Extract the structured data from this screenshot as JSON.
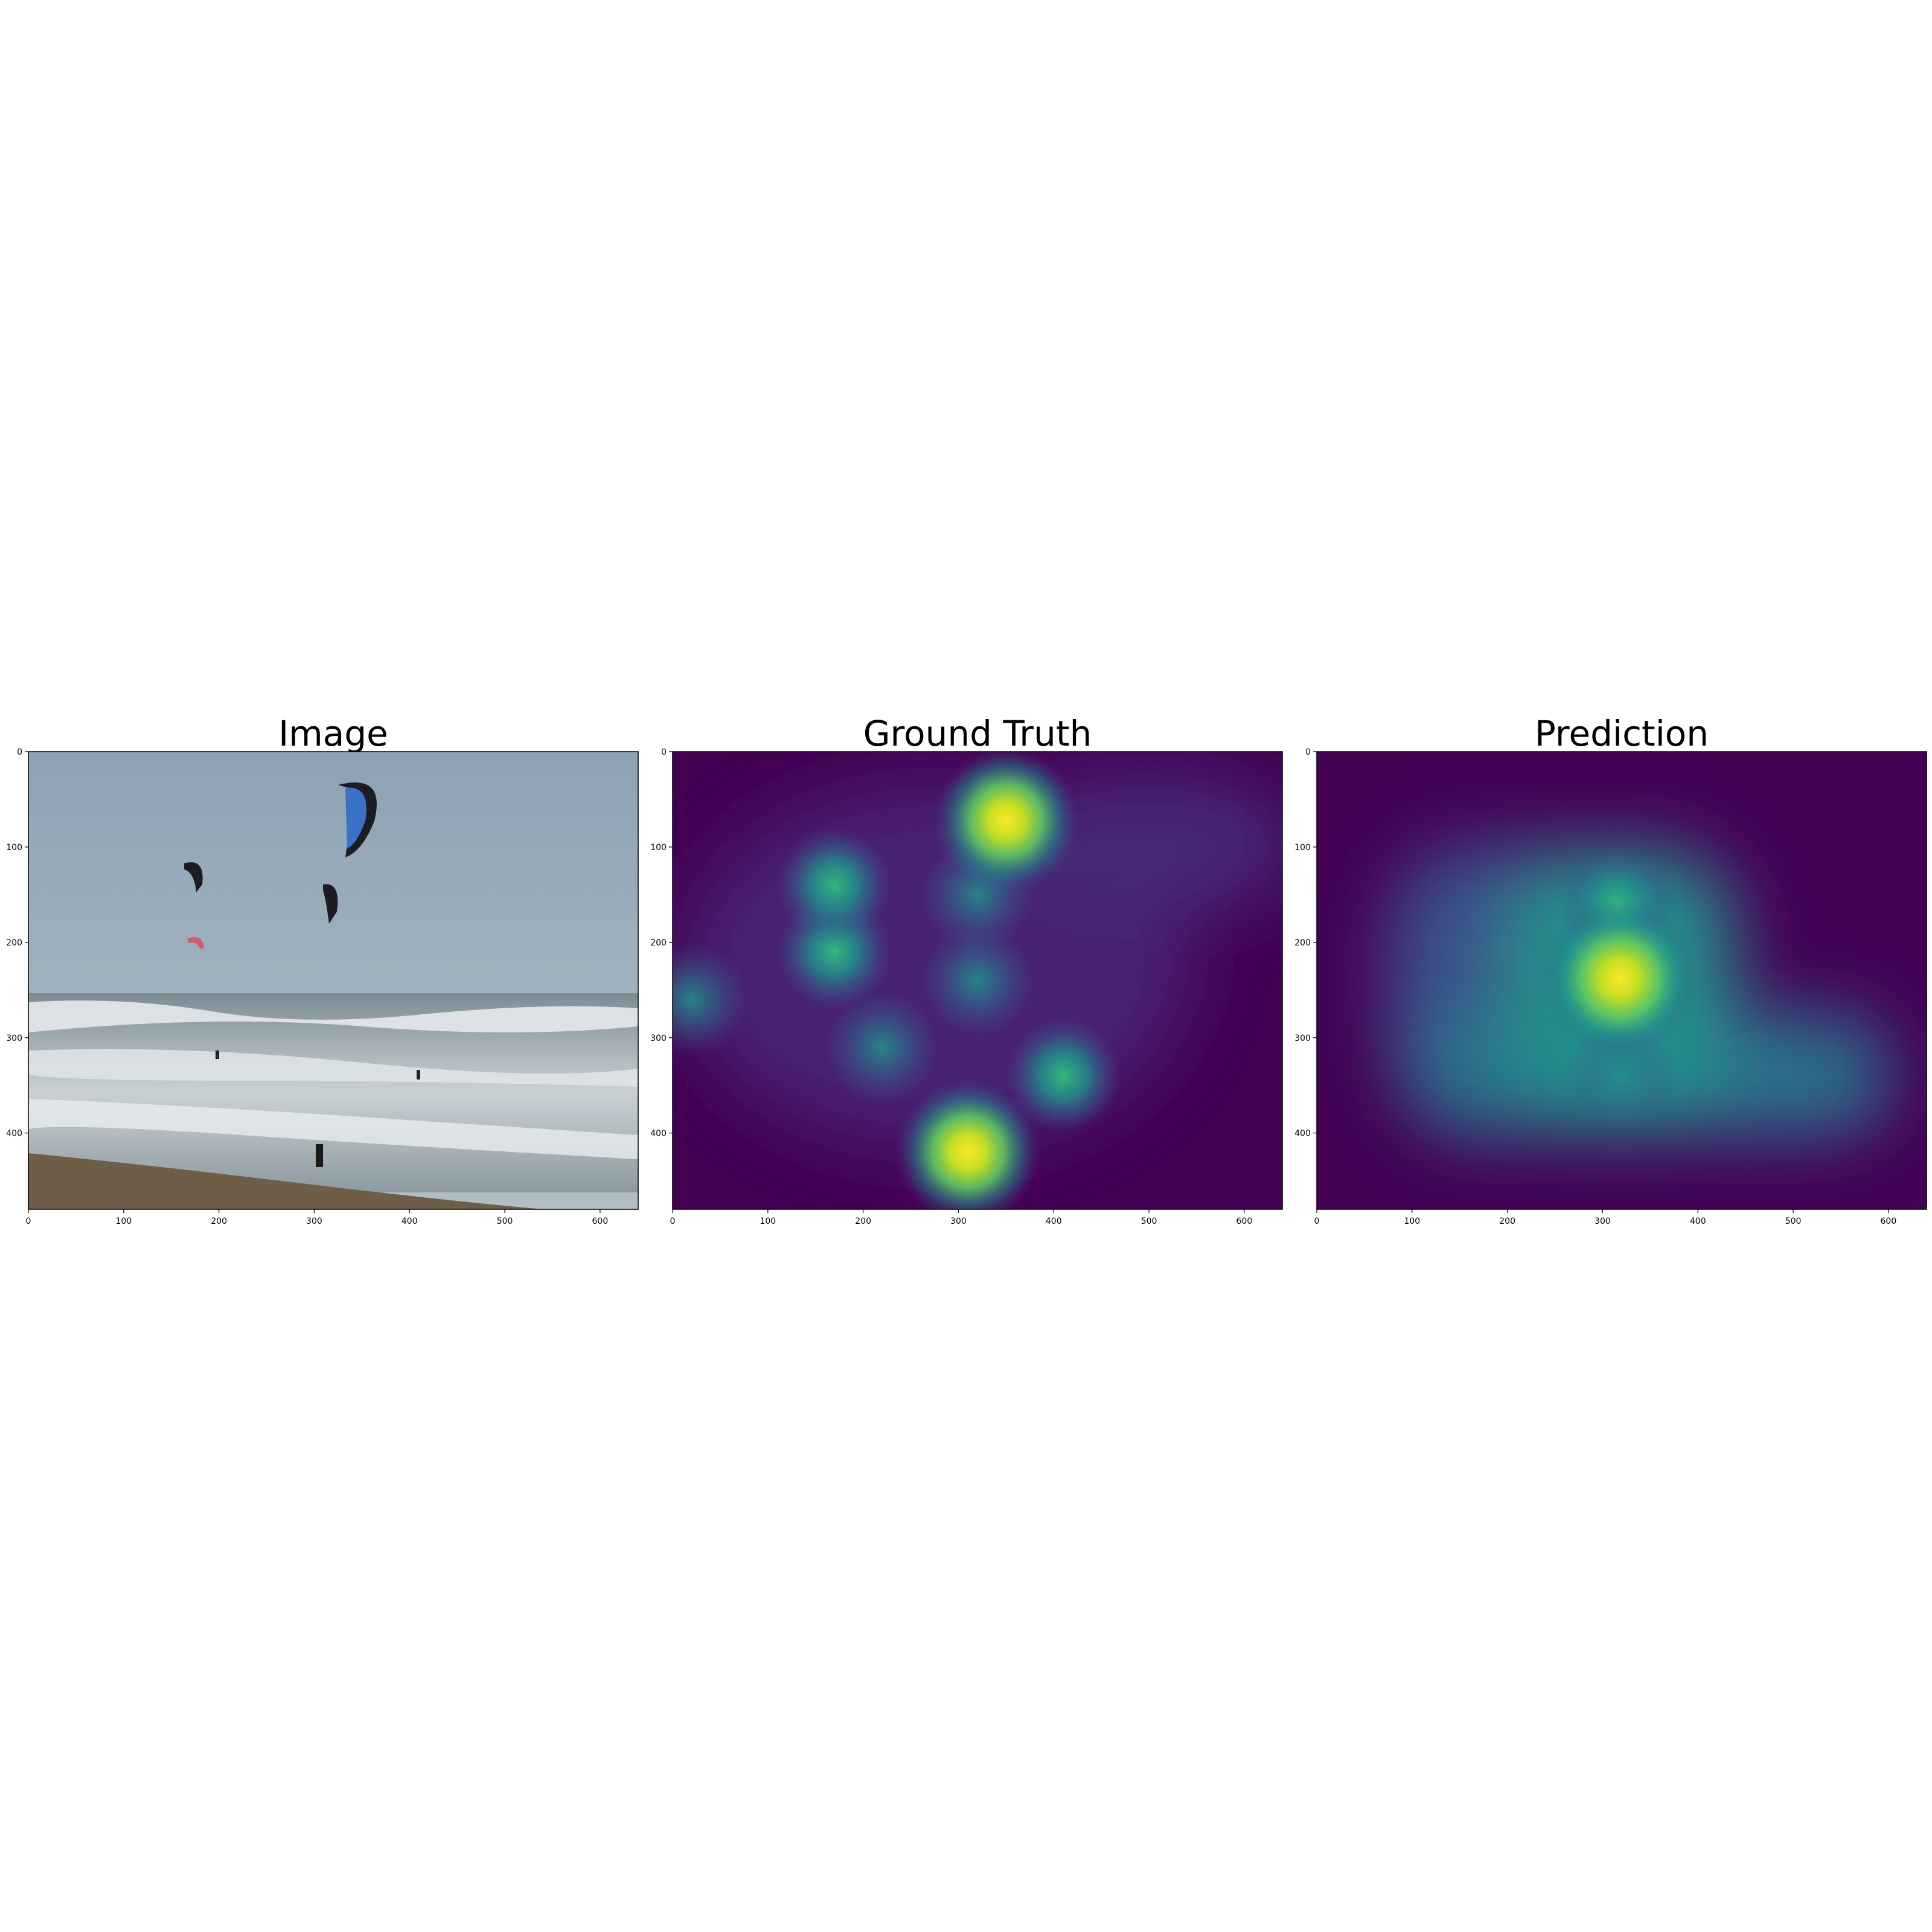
{
  "figure": {
    "panels": [
      "Image",
      "Ground Truth",
      "Prediction"
    ]
  },
  "chart_data": [
    {
      "type": "heatmap",
      "title": "Image",
      "content": "photo",
      "xlim": [
        0,
        640
      ],
      "ylim": [
        480,
        0
      ],
      "xticks": [
        0,
        100,
        200,
        300,
        400,
        500,
        600
      ],
      "yticks": [
        0,
        100,
        200,
        300,
        400
      ],
      "colors": {
        "sky_top": "#8fa3b6",
        "sky_bottom": "#a9b8c2",
        "sea": "#8a98a2",
        "surf": "#e6ebee",
        "sand": "#6b5a45",
        "kite_blue": "#3a72c8",
        "kite_dark": "#1c1c22",
        "kite_red": "#d85a6a"
      }
    },
    {
      "type": "heatmap",
      "title": "Ground Truth",
      "colormap": "viridis",
      "xlim": [
        0,
        640
      ],
      "ylim": [
        480,
        0
      ],
      "xticks": [
        0,
        100,
        200,
        300,
        400,
        500,
        600
      ],
      "yticks": [
        0,
        100,
        200,
        300,
        400
      ],
      "hotspots": [
        {
          "x": 350,
          "y": 72,
          "intensity": 1.0
        },
        {
          "x": 310,
          "y": 420,
          "intensity": 0.85
        },
        {
          "x": 170,
          "y": 140,
          "intensity": 0.6
        },
        {
          "x": 170,
          "y": 210,
          "intensity": 0.58
        },
        {
          "x": 410,
          "y": 340,
          "intensity": 0.55
        },
        {
          "x": 320,
          "y": 150,
          "intensity": 0.45
        },
        {
          "x": 320,
          "y": 240,
          "intensity": 0.45
        },
        {
          "x": 220,
          "y": 310,
          "intensity": 0.4
        },
        {
          "x": 20,
          "y": 260,
          "intensity": 0.35
        }
      ]
    },
    {
      "type": "heatmap",
      "title": "Prediction",
      "colormap": "viridis",
      "xlim": [
        0,
        640
      ],
      "ylim": [
        480,
        0
      ],
      "xticks": [
        0,
        100,
        200,
        300,
        400,
        500,
        600
      ],
      "yticks": [
        0,
        100,
        200,
        300,
        400
      ],
      "hotspots": [
        {
          "x": 318,
          "y": 238,
          "intensity": 1.0
        },
        {
          "x": 315,
          "y": 160,
          "intensity": 0.6
        },
        {
          "x": 320,
          "y": 340,
          "intensity": 0.45
        }
      ]
    }
  ]
}
